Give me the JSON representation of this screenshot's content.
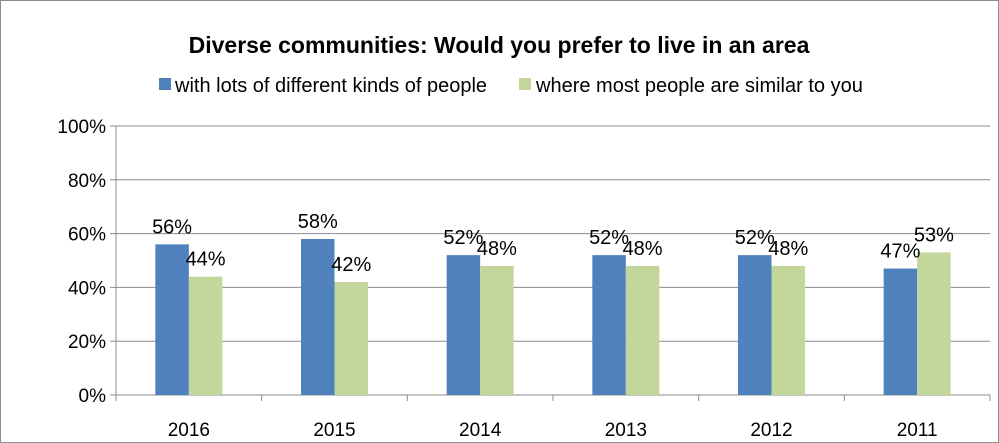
{
  "chart_data": {
    "type": "bar",
    "title": "Diverse communities: Would you prefer to live in an area",
    "xlabel": "",
    "ylabel": "",
    "categories": [
      "2016",
      "2015",
      "2014",
      "2013",
      "2012",
      "2011"
    ],
    "series": [
      {
        "name": "with lots of different kinds of people",
        "color": "#4f81bd",
        "values": [
          56,
          58,
          52,
          52,
          52,
          47
        ],
        "labels": [
          "56%",
          "58%",
          "52%",
          "52%",
          "52%",
          "47%"
        ]
      },
      {
        "name": "where most people are similar to you",
        "color": "#c3d69b",
        "values": [
          44,
          42,
          48,
          48,
          48,
          53
        ],
        "labels": [
          "44%",
          "42%",
          "48%",
          "48%",
          "48%",
          "53%"
        ]
      }
    ],
    "ylim": [
      0,
      100
    ],
    "yticks": [
      0,
      20,
      40,
      60,
      80,
      100
    ],
    "ytick_labels": [
      "0%",
      "20%",
      "40%",
      "60%",
      "80%",
      "100%"
    ],
    "grid": true,
    "legend_position": "top"
  }
}
